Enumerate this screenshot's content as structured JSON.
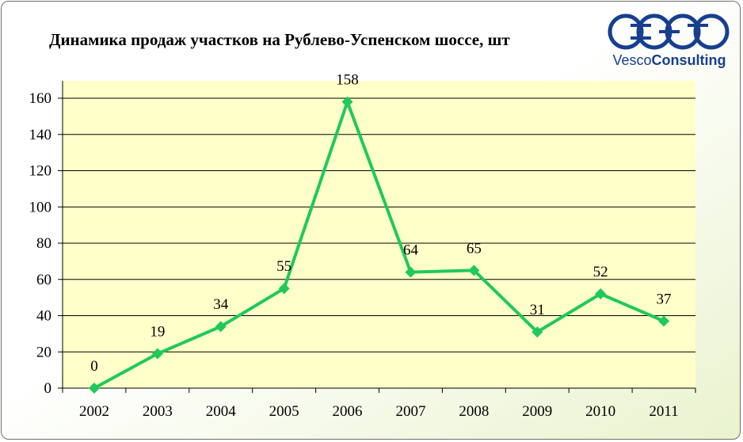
{
  "title": "Динамика продаж участков на Рублево-Успенском шоссе, шт",
  "logo": {
    "brand_light": "Vesco",
    "brand_bold": "Consulting",
    "color": "#173f8f"
  },
  "colors": {
    "line": "#1fc95a",
    "plot_bg": "#ffffc9",
    "grid": "#000000"
  },
  "chart_data": {
    "type": "line",
    "categories": [
      "2002",
      "2003",
      "2004",
      "2005",
      "2006",
      "2007",
      "2008",
      "2009",
      "2010",
      "2011"
    ],
    "values": [
      0,
      19,
      34,
      55,
      158,
      64,
      65,
      31,
      52,
      37
    ],
    "ylim": [
      0,
      160
    ],
    "yticks": [
      "0",
      "20",
      "40",
      "60",
      "80",
      "100",
      "120",
      "140",
      "160"
    ],
    "marker": "diamond",
    "data_labels": true,
    "grid": true,
    "legend": false
  }
}
